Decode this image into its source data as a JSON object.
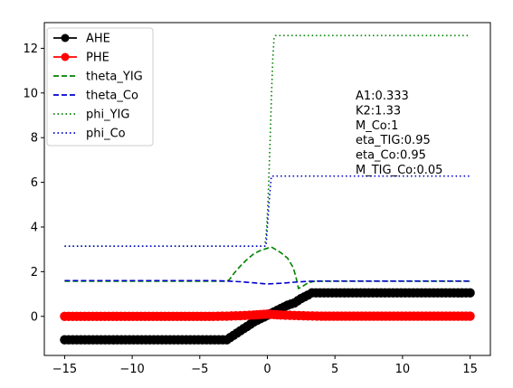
{
  "chart_data": {
    "type": "line",
    "xlim": [
      -16.5,
      16.5
    ],
    "ylim": [
      -1.75,
      13.15
    ],
    "x_ticks": [
      -15,
      -10,
      -5,
      0,
      5,
      10,
      15
    ],
    "y_ticks": [
      0,
      2,
      4,
      6,
      8,
      10,
      12
    ],
    "x_tick_labels": [
      "−15",
      "−10",
      "−5",
      "0",
      "5",
      "10",
      "15"
    ],
    "y_tick_labels": [
      "0",
      "2",
      "4",
      "6",
      "8",
      "10",
      "12"
    ],
    "grid": false,
    "legend_location": "upper-left",
    "series": [
      {
        "name": "AHE",
        "color": "#000000",
        "style": "solid-marker",
        "points": [
          [
            -15,
            -1.05
          ],
          [
            -3,
            -1.05
          ],
          [
            -2.5,
            -0.85
          ],
          [
            -2,
            -0.65
          ],
          [
            -1.5,
            -0.45
          ],
          [
            -1,
            -0.25
          ],
          [
            -0.5,
            -0.1
          ],
          [
            0,
            0.05
          ],
          [
            0.5,
            0.2
          ],
          [
            1,
            0.35
          ],
          [
            1.5,
            0.5
          ],
          [
            2,
            0.6
          ],
          [
            2.5,
            0.8
          ],
          [
            3,
            0.95
          ],
          [
            3.3,
            1.05
          ],
          [
            15,
            1.05
          ]
        ]
      },
      {
        "name": "PHE",
        "color": "#ff0000",
        "style": "solid-marker",
        "points": [
          [
            -15,
            0
          ],
          [
            -4,
            0
          ],
          [
            -3,
            0.01
          ],
          [
            -2,
            0.03
          ],
          [
            -1,
            0.06
          ],
          [
            -0.5,
            0.08
          ],
          [
            0,
            0.1
          ],
          [
            0.5,
            0.08
          ],
          [
            1,
            0.06
          ],
          [
            2,
            0.04
          ],
          [
            3,
            0.02
          ],
          [
            4,
            0.01
          ],
          [
            15,
            0.01
          ]
        ]
      },
      {
        "name": "theta_YIG",
        "color": "#008000",
        "style": "dashed",
        "points": [
          [
            -15,
            1.57
          ],
          [
            -3,
            1.57
          ],
          [
            -2.8,
            1.65
          ],
          [
            -2.5,
            1.9
          ],
          [
            -2,
            2.25
          ],
          [
            -1.5,
            2.55
          ],
          [
            -1,
            2.8
          ],
          [
            -0.5,
            2.95
          ],
          [
            0,
            3.05
          ],
          [
            0.3,
            3.1
          ],
          [
            0.6,
            3.0
          ],
          [
            1,
            2.85
          ],
          [
            1.5,
            2.6
          ],
          [
            1.9,
            2.2
          ],
          [
            2.1,
            1.8
          ],
          [
            2.3,
            1.25
          ],
          [
            2.5,
            1.3
          ],
          [
            3,
            1.5
          ],
          [
            3.5,
            1.57
          ],
          [
            15,
            1.57
          ]
        ]
      },
      {
        "name": "theta_Co",
        "color": "#0000cd",
        "style": "dashed",
        "points": [
          [
            -15,
            1.6
          ],
          [
            -4,
            1.6
          ],
          [
            -3,
            1.58
          ],
          [
            -2,
            1.55
          ],
          [
            -1,
            1.5
          ],
          [
            0,
            1.45
          ],
          [
            1,
            1.48
          ],
          [
            2,
            1.53
          ],
          [
            3,
            1.57
          ],
          [
            4,
            1.58
          ],
          [
            15,
            1.58
          ]
        ]
      },
      {
        "name": "phi_YIG",
        "color": "#008000",
        "style": "dotted",
        "points": [
          [
            -15,
            3.14
          ],
          [
            -0.2,
            3.14
          ],
          [
            -0.1,
            3.6
          ],
          [
            0,
            4.5
          ],
          [
            0.1,
            6.0
          ],
          [
            0.2,
            7.8
          ],
          [
            0.3,
            9.8
          ],
          [
            0.4,
            11.5
          ],
          [
            0.5,
            12.5
          ],
          [
            0.6,
            12.57
          ],
          [
            15,
            12.57
          ]
        ]
      },
      {
        "name": "phi_Co",
        "color": "#0000cd",
        "style": "dotted",
        "points": [
          [
            -15,
            3.14
          ],
          [
            -0.1,
            3.14
          ],
          [
            0,
            4.0
          ],
          [
            0.15,
            5.3
          ],
          [
            0.3,
            6.28
          ],
          [
            15,
            6.28
          ]
        ]
      }
    ],
    "annotation": [
      "A1:0.333",
      "K2:1.33",
      "M_Co:1",
      "eta_TIG:0.95",
      "eta_Co:0.95",
      "M_TIG_Co:0.05"
    ]
  }
}
